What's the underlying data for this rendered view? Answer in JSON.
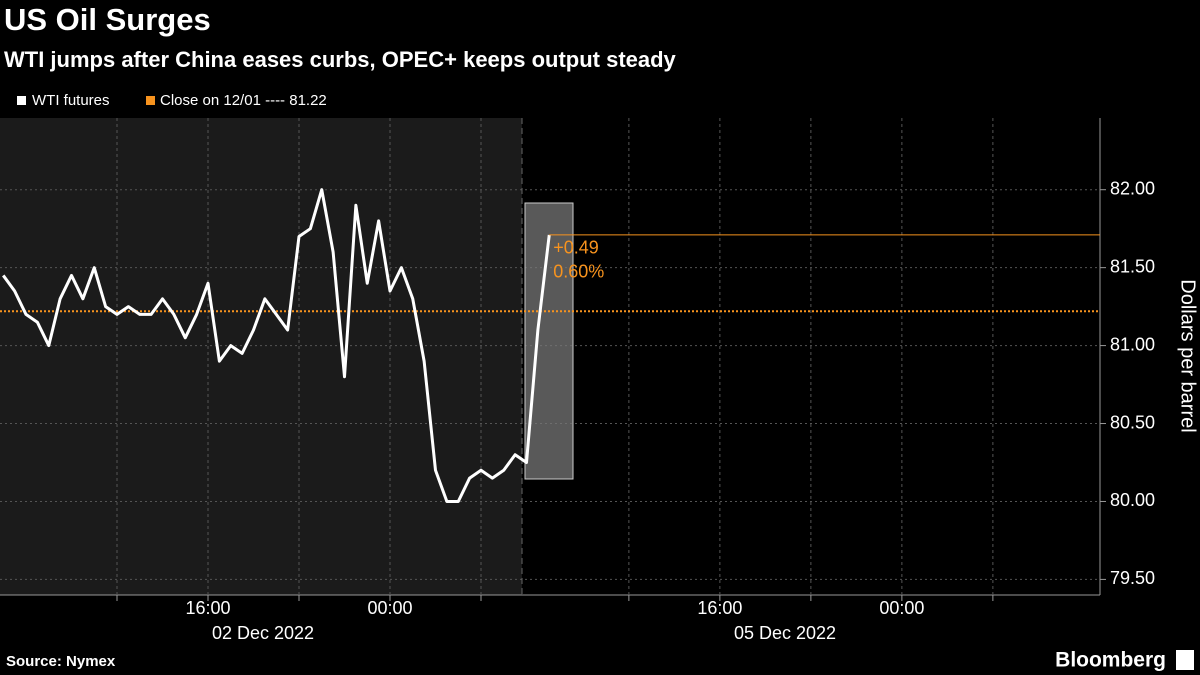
{
  "chart_data": {
    "type": "line",
    "title": "US Oil Surges",
    "subtitle": "WTI jumps after China eases curbs, OPEC+ keeps output steady",
    "y_label": "Dollars per barrel",
    "source": "Source: Nymex",
    "brand": "Bloomberg",
    "categories": [
      null,
      null,
      null,
      null,
      null,
      null,
      null,
      null,
      null,
      null,
      null,
      null,
      null,
      null,
      null,
      null,
      null,
      null,
      "16:00",
      null,
      null,
      null,
      null,
      null,
      null,
      null,
      null,
      null,
      null,
      null,
      null,
      null,
      null,
      null,
      "00:00",
      null,
      null,
      null,
      null,
      null,
      null,
      null,
      null,
      null,
      null,
      null,
      null,
      null,
      null,
      null,
      null,
      null,
      null,
      null,
      null,
      null,
      null,
      null,
      null,
      null,
      null,
      null,
      null,
      "16:00",
      null,
      null,
      null,
      null,
      null,
      null,
      null,
      null,
      null,
      null,
      null,
      null,
      null,
      null,
      null,
      "00:00",
      null,
      null,
      null,
      null,
      null,
      null,
      null,
      null,
      null,
      null,
      null,
      null,
      null,
      null,
      null,
      null,
      null
    ],
    "date_labels": [
      "02 Dec 2022",
      "05 Dec 2022"
    ],
    "series": [
      {
        "name": "WTI futures",
        "color": "#ffffff",
        "values": [
          81.45,
          81.35,
          81.2,
          81.15,
          81.0,
          81.3,
          81.45,
          81.3,
          81.5,
          81.25,
          81.2,
          81.25,
          81.2,
          81.2,
          81.3,
          81.2,
          81.05,
          81.2,
          81.4,
          80.9,
          81.0,
          80.95,
          81.1,
          81.3,
          81.2,
          81.1,
          81.7,
          81.75,
          82.0,
          81.6,
          80.8,
          81.9,
          81.4,
          81.8,
          81.35,
          81.5,
          81.3,
          80.9,
          80.2,
          80.0,
          80.0,
          80.15,
          80.2,
          80.15,
          80.2,
          80.3,
          80.25,
          81.1,
          81.71,
          null,
          null,
          null,
          null,
          null,
          null,
          null,
          null,
          null,
          null,
          null,
          null,
          null,
          null,
          null,
          null,
          null,
          null,
          null,
          null,
          null,
          null,
          null,
          null,
          null,
          null,
          null,
          null,
          null,
          null,
          null,
          null,
          null,
          null,
          null,
          null,
          null,
          null,
          null,
          null,
          null,
          null,
          null,
          null,
          null,
          null,
          null,
          null
        ]
      }
    ],
    "close": {
      "name": "Close on 12/01 ---- 81.22",
      "value": 81.22,
      "color": "#f7931e"
    },
    "change_labels": [
      "+0.49",
      "0.60%"
    ],
    "ylim": [
      79.4,
      82.46
    ],
    "yticks": [
      {
        "value": 79.5,
        "label": "79.50"
      },
      {
        "value": 80,
        "label": "80.00"
      },
      {
        "value": 80.5,
        "label": "80.50"
      },
      {
        "value": 81,
        "label": "81.00"
      },
      {
        "value": 81.5,
        "label": "81.50"
      },
      {
        "value": 82,
        "label": "82.00"
      }
    ],
    "grid": true
  }
}
